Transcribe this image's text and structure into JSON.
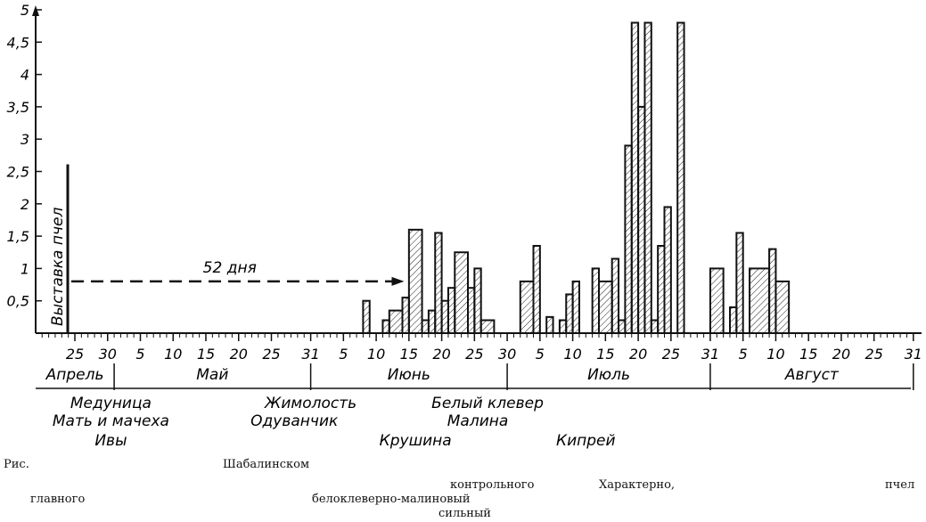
{
  "chart_data": {
    "type": "bar",
    "title": "",
    "xlabel": "",
    "ylabel": "",
    "ylim": [
      0,
      5
    ],
    "y_ticks": [
      {
        "value": 0.5,
        "label": "0,5"
      },
      {
        "value": 1,
        "label": "1"
      },
      {
        "value": 1.5,
        "label": "1,5"
      },
      {
        "value": 2,
        "label": "2"
      },
      {
        "value": 2.5,
        "label": "2,5"
      },
      {
        "value": 3,
        "label": "3"
      },
      {
        "value": 3.5,
        "label": "3,5"
      },
      {
        "value": 4,
        "label": "4"
      },
      {
        "value": 4.5,
        "label": "4,5"
      },
      {
        "value": 5,
        "label": "5"
      }
    ],
    "x_range_days": [
      0,
      130
    ],
    "x_ticks": [
      {
        "day": 0,
        "label": "25"
      },
      {
        "day": 5,
        "label": "30"
      },
      {
        "day": 10,
        "label": "5"
      },
      {
        "day": 15,
        "label": "10"
      },
      {
        "day": 20,
        "label": "15"
      },
      {
        "day": 25,
        "label": "20"
      },
      {
        "day": 30,
        "label": "25"
      },
      {
        "day": 36,
        "label": "31"
      },
      {
        "day": 41,
        "label": "5"
      },
      {
        "day": 46,
        "label": "10"
      },
      {
        "day": 51,
        "label": "15"
      },
      {
        "day": 56,
        "label": "20"
      },
      {
        "day": 61,
        "label": "25"
      },
      {
        "day": 66,
        "label": "30"
      },
      {
        "day": 71,
        "label": "5"
      },
      {
        "day": 76,
        "label": "10"
      },
      {
        "day": 81,
        "label": "15"
      },
      {
        "day": 86,
        "label": "20"
      },
      {
        "day": 91,
        "label": "25"
      },
      {
        "day": 97,
        "label": "31"
      },
      {
        "day": 102,
        "label": "5"
      },
      {
        "day": 107,
        "label": "10"
      },
      {
        "day": 112,
        "label": "15"
      },
      {
        "day": 117,
        "label": "20"
      },
      {
        "day": 122,
        "label": "25"
      },
      {
        "day": 128,
        "label": "31"
      }
    ],
    "months": [
      {
        "label": "Апрель",
        "start": -6,
        "end": 6
      },
      {
        "label": "Май",
        "start": 6,
        "end": 36
      },
      {
        "label": "Июнь",
        "start": 36,
        "end": 66
      },
      {
        "label": "Июль",
        "start": 66,
        "end": 97
      },
      {
        "label": "Август",
        "start": 97,
        "end": 128
      }
    ],
    "month_dividers": [
      6,
      36,
      66,
      97,
      128
    ],
    "bars": [
      {
        "start": 44,
        "end": 45,
        "value": 0.5
      },
      {
        "start": 47,
        "end": 48,
        "value": 0.2
      },
      {
        "start": 48,
        "end": 50,
        "value": 0.35
      },
      {
        "start": 50,
        "end": 51,
        "value": 0.55
      },
      {
        "start": 51,
        "end": 53,
        "value": 1.6
      },
      {
        "start": 53,
        "end": 54,
        "value": 0.2
      },
      {
        "start": 54,
        "end": 55,
        "value": 0.35
      },
      {
        "start": 55,
        "end": 56,
        "value": 1.55
      },
      {
        "start": 56,
        "end": 57,
        "value": 0.5
      },
      {
        "start": 57,
        "end": 58,
        "value": 0.7
      },
      {
        "start": 58,
        "end": 60,
        "value": 1.25
      },
      {
        "start": 60,
        "end": 61,
        "value": 0.7
      },
      {
        "start": 61,
        "end": 62,
        "value": 1.0
      },
      {
        "start": 62,
        "end": 64,
        "value": 0.2
      },
      {
        "start": 68,
        "end": 70,
        "value": 0.8
      },
      {
        "start": 70,
        "end": 71,
        "value": 1.35
      },
      {
        "start": 72,
        "end": 73,
        "value": 0.25
      },
      {
        "start": 74,
        "end": 75,
        "value": 0.2
      },
      {
        "start": 75,
        "end": 76,
        "value": 0.6
      },
      {
        "start": 76,
        "end": 77,
        "value": 0.8
      },
      {
        "start": 79,
        "end": 80,
        "value": 1.0
      },
      {
        "start": 80,
        "end": 82,
        "value": 0.8
      },
      {
        "start": 82,
        "end": 83,
        "value": 1.15
      },
      {
        "start": 83,
        "end": 84,
        "value": 0.2
      },
      {
        "start": 84,
        "end": 85,
        "value": 2.9
      },
      {
        "start": 85,
        "end": 86,
        "value": 4.8
      },
      {
        "start": 86,
        "end": 87,
        "value": 3.5
      },
      {
        "start": 87,
        "end": 88,
        "value": 4.8
      },
      {
        "start": 88,
        "end": 89,
        "value": 0.2
      },
      {
        "start": 89,
        "end": 90,
        "value": 1.35
      },
      {
        "start": 90,
        "end": 91,
        "value": 1.95
      },
      {
        "start": 92,
        "end": 93,
        "value": 4.8
      },
      {
        "start": 97,
        "end": 99,
        "value": 1.0
      },
      {
        "start": 100,
        "end": 101,
        "value": 0.4
      },
      {
        "start": 101,
        "end": 102,
        "value": 1.55
      },
      {
        "start": 103,
        "end": 106,
        "value": 1.0
      },
      {
        "start": 106,
        "end": 107,
        "value": 1.3
      },
      {
        "start": 107,
        "end": 109,
        "value": 0.8
      }
    ],
    "annotations": {
      "vertical_label": "Выставка пчел",
      "arrow_label": "52 дня",
      "arrow_start_day": 0,
      "arrow_end_day": 50,
      "arrow_value": 0.8,
      "marker_start_day": 0,
      "marker_top_value": 2.5
    },
    "plants": [
      {
        "label": "Медуница",
        "day": 5.5,
        "row": 0
      },
      {
        "label": "Мать и мачеха",
        "day": 5.5,
        "row": 1
      },
      {
        "label": "Ивы",
        "day": 5.5,
        "row": 2
      },
      {
        "label": "Жимолость",
        "day": 36,
        "row": 0
      },
      {
        "label": "Одуванчик",
        "day": 33.5,
        "row": 1
      },
      {
        "label": "Крушина",
        "day": 52,
        "row": 2
      },
      {
        "label": "Белый  клевер",
        "day": 63,
        "row": 0
      },
      {
        "label": "Малина",
        "day": 61.5,
        "row": 1
      },
      {
        "label": "Кипрей",
        "day": 78,
        "row": 2
      }
    ]
  },
  "caption": {
    "fragments": [
      {
        "text": "Рис."
      },
      {
        "text": "Шабалинском"
      },
      {
        "text": "контрольного"
      },
      {
        "text": "Характерно,"
      },
      {
        "text": "пчел"
      },
      {
        "text": "главного"
      },
      {
        "text": "белоклеверно-малиновый"
      },
      {
        "text": "сильный"
      }
    ]
  }
}
